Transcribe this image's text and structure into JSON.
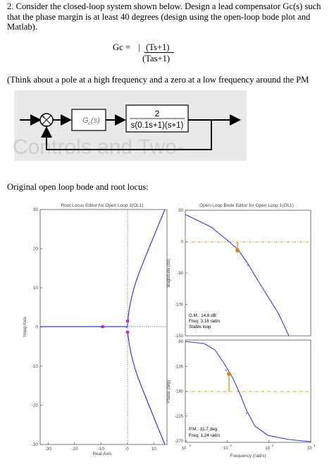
{
  "question": {
    "line1": "2.  Consider the closed-loop system shown below.  Design a lead compensator Gc(s) such",
    "line2": "that the phase margin is at least 40 degrees (design using the open-loop bode plot and",
    "line3": "Matlab)."
  },
  "formula": {
    "lhs": "Gc =",
    "bar": "|",
    "numerator": "(Ts+1)",
    "denominator": "(Tas+1)"
  },
  "hint": "(Think about a pole at a high frequency and a zero at a low frequency around the PM",
  "block_diagram": {
    "sum_plus": "+",
    "sum_minus": "−",
    "compensator": "G",
    "compensator_sub": "c",
    "compensator_arg": "(s)",
    "plant_num": "2",
    "plant_den": "s(0.1s+1)(s+1)",
    "watermark": "Controls and Two-"
  },
  "section_heading": "Original open loop bode and root locus:",
  "root_locus": {
    "title": "Root Locus Editor for Open Loop 1(OL1)",
    "xlabel": "Real Axis",
    "ylabel": "Imag Axis",
    "xticks": [
      "-30",
      "-20",
      "-10",
      "0",
      "10"
    ],
    "yticks": [
      "30",
      "20",
      "10",
      "0",
      "-10",
      "-20",
      "-30"
    ]
  },
  "bode": {
    "title": "Open-Loop Bode Editor for Open Loop 1(OL1)",
    "mag_ylabel": "Magnitude (dB)",
    "phase_ylabel": "Phase (deg)",
    "xlabel": "Frequency (rad/s)",
    "mag_yticks": [
      "50",
      "0",
      "-50",
      "-100",
      "-150"
    ],
    "phase_yticks": [
      "-90",
      "-135",
      "-180",
      "-225",
      "-270"
    ],
    "xticks": [
      "10",
      "10",
      "10",
      "10"
    ],
    "xtick_exps": [
      "-2",
      "0",
      "2",
      "4"
    ],
    "gm_line1": "G.M.: 14.8 dB",
    "gm_line2": "Freq: 3.16 rad/s",
    "gm_line3": "Stable loop",
    "pm_line1": "P.M.: 31.7 deg",
    "pm_line2": "Freq: 1.24 rad/s"
  },
  "colors": {
    "curve": "#3b3bd6",
    "marker": "#d97f10",
    "pole": "#e020e0",
    "ref_line": "#d4a020"
  }
}
